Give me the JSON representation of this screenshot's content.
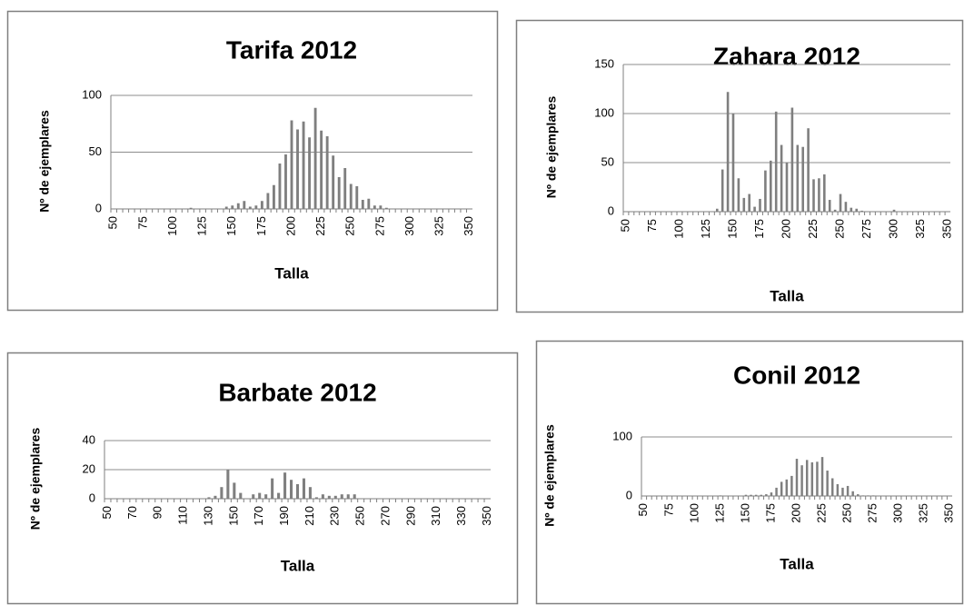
{
  "chart_data": [
    {
      "type": "bar",
      "title": "Tarifa 2012",
      "xlabel": "Talla",
      "ylabel": "Nº de ejemplares",
      "color": "#7f7f7f",
      "grid": true,
      "ylim": [
        0,
        100
      ],
      "yticks": [
        0,
        50,
        100
      ],
      "categories": [
        50,
        null,
        null,
        null,
        null,
        75,
        null,
        null,
        null,
        null,
        100,
        null,
        null,
        null,
        null,
        125,
        null,
        null,
        null,
        null,
        150,
        null,
        null,
        null,
        null,
        175,
        null,
        null,
        null,
        null,
        200,
        null,
        null,
        null,
        null,
        225,
        null,
        null,
        null,
        null,
        250,
        null,
        null,
        null,
        null,
        275,
        null,
        null,
        null,
        null,
        300,
        null,
        null,
        null,
        null,
        325,
        null,
        null,
        null,
        null,
        350
      ],
      "values": [
        0,
        0,
        0,
        0,
        0,
        0,
        0,
        0,
        0,
        0,
        0,
        0,
        0,
        1,
        0,
        0,
        0,
        0,
        0,
        2,
        3,
        5,
        7,
        2,
        3,
        7,
        14,
        21,
        40,
        48,
        78,
        70,
        77,
        63,
        89,
        69,
        64,
        47,
        28,
        36,
        22,
        20,
        8,
        9,
        3,
        3,
        1,
        0,
        0,
        0,
        0,
        0,
        0,
        0,
        0,
        0,
        0,
        0,
        0,
        0,
        0
      ]
    },
    {
      "type": "bar",
      "title": "Zahara 2012",
      "xlabel": "Talla",
      "ylabel": "Nº de ejemplares",
      "color": "#7f7f7f",
      "grid": true,
      "ylim": [
        0,
        150
      ],
      "yticks": [
        0,
        50,
        100,
        150
      ],
      "categories": [
        50,
        null,
        null,
        null,
        null,
        75,
        null,
        null,
        null,
        null,
        100,
        null,
        null,
        null,
        null,
        125,
        null,
        null,
        null,
        null,
        150,
        null,
        null,
        null,
        null,
        175,
        null,
        null,
        null,
        null,
        200,
        null,
        null,
        null,
        null,
        225,
        null,
        null,
        null,
        null,
        250,
        null,
        null,
        null,
        null,
        275,
        null,
        null,
        null,
        null,
        300,
        null,
        null,
        null,
        null,
        325,
        null,
        null,
        null,
        null,
        350
      ],
      "values": [
        0,
        0,
        0,
        0,
        0,
        0,
        0,
        0,
        0,
        0,
        0,
        0,
        0,
        0,
        0,
        0,
        0,
        3,
        43,
        122,
        100,
        34,
        14,
        18,
        5,
        13,
        42,
        52,
        102,
        68,
        50,
        106,
        68,
        66,
        85,
        33,
        34,
        38,
        12,
        2,
        18,
        10,
        4,
        3,
        1,
        0,
        0,
        0,
        0,
        0,
        2,
        0,
        0,
        0,
        0,
        0,
        0,
        0,
        0,
        0,
        0
      ]
    },
    {
      "type": "bar",
      "title": "Barbate 2012",
      "xlabel": "Talla",
      "ylabel": "Nº de ejemplares",
      "color": "#7f7f7f",
      "grid": true,
      "ylim": [
        0,
        40
      ],
      "yticks": [
        0,
        20,
        40
      ],
      "categories": [
        50,
        null,
        null,
        null,
        70,
        null,
        null,
        null,
        90,
        null,
        null,
        null,
        110,
        null,
        null,
        null,
        130,
        null,
        null,
        null,
        150,
        null,
        null,
        null,
        170,
        null,
        null,
        null,
        190,
        null,
        null,
        null,
        210,
        null,
        null,
        null,
        230,
        null,
        null,
        null,
        250,
        null,
        null,
        null,
        270,
        null,
        null,
        null,
        290,
        null,
        null,
        null,
        310,
        null,
        null,
        null,
        330,
        null,
        null,
        null,
        350
      ],
      "values": [
        0,
        0,
        0,
        0,
        0,
        0,
        0,
        0,
        0,
        0,
        0,
        0,
        0,
        0,
        0,
        0,
        1,
        2,
        8,
        20,
        11,
        4,
        0,
        3,
        4,
        3,
        14,
        4,
        18,
        13,
        10,
        14,
        8,
        1,
        3,
        2,
        2,
        3,
        3,
        3,
        0,
        0,
        0,
        0,
        0,
        0,
        0,
        0,
        0,
        0,
        0,
        0,
        0,
        0,
        0,
        0,
        0,
        0,
        0,
        0,
        0
      ]
    },
    {
      "type": "bar",
      "title": "Conil 2012",
      "xlabel": "Talla",
      "ylabel": "Nº de ejemplares",
      "color": "#7f7f7f",
      "grid": true,
      "ylim": [
        0,
        100
      ],
      "yticks": [
        0,
        100
      ],
      "categories": [
        50,
        null,
        null,
        null,
        null,
        75,
        null,
        null,
        null,
        null,
        100,
        null,
        null,
        null,
        null,
        125,
        null,
        null,
        null,
        null,
        150,
        null,
        null,
        null,
        null,
        175,
        null,
        null,
        null,
        null,
        200,
        null,
        null,
        null,
        null,
        225,
        null,
        null,
        null,
        null,
        250,
        null,
        null,
        null,
        null,
        275,
        null,
        null,
        null,
        null,
        300,
        null,
        null,
        null,
        null,
        325,
        null,
        null,
        null,
        null,
        350
      ],
      "values": [
        0,
        0,
        0,
        0,
        0,
        0,
        0,
        0,
        0,
        0,
        0,
        0,
        0,
        0,
        0,
        1,
        0,
        0,
        0,
        0,
        2,
        2,
        2,
        2,
        3,
        6,
        14,
        24,
        28,
        34,
        63,
        52,
        61,
        57,
        58,
        66,
        43,
        30,
        20,
        14,
        17,
        8,
        3,
        1,
        1,
        1,
        0,
        0,
        0,
        0,
        0,
        0,
        0,
        0,
        0,
        0,
        0,
        0,
        0,
        0,
        0
      ]
    }
  ]
}
